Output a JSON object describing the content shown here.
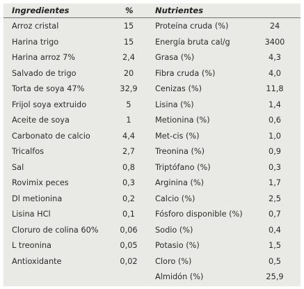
{
  "headers": {
    "ingredients": "Ingredientes",
    "percent": "%",
    "nutrients": "Nutrientes"
  },
  "ingredients": [
    {
      "name": "Arroz cristal",
      "pct": "15"
    },
    {
      "name": "Harina trigo",
      "pct": "15"
    },
    {
      "name": "Harina arroz 7%",
      "pct": "2,4"
    },
    {
      "name": "Salvado de trigo",
      "pct": "20"
    },
    {
      "name": "Torta de soya 47%",
      "pct": "32,9"
    },
    {
      "name": "Frijol soya extruido",
      "pct": "5"
    },
    {
      "name": "Aceite de soya",
      "pct": "1"
    },
    {
      "name": "Carbonato de calcio",
      "pct": "4,4"
    },
    {
      "name": "Tricalfos",
      "pct": "2,7"
    },
    {
      "name": "Sal",
      "pct": "0,8"
    },
    {
      "name": "Rovimix peces",
      "pct": "0,3"
    },
    {
      "name": "Dl metionina",
      "pct": "0,2"
    },
    {
      "name": "Lisina HCl",
      "pct": "0,1"
    },
    {
      "name": "Cloruro de colina 60%",
      "pct": "0,06"
    },
    {
      "name": "L treonina",
      "pct": "0,05"
    },
    {
      "name": "Antioxidante",
      "pct": "0,02"
    }
  ],
  "nutrients": [
    {
      "name": "Proteína cruda (%)",
      "value": "24"
    },
    {
      "name": "Energía bruta cal/g",
      "value": "3400"
    },
    {
      "name": "Grasa (%)",
      "value": "4,3"
    },
    {
      "name": "Fibra cruda (%)",
      "value": "4,0"
    },
    {
      "name": "Cenizas (%)",
      "value": "11,8"
    },
    {
      "name": "Lisina (%)",
      "value": "1,4"
    },
    {
      "name": "Metionina (%)",
      "value": "0,6"
    },
    {
      "name": "Met-cis (%)",
      "value": "1,0"
    },
    {
      "name": "Treonina (%)",
      "value": "0,9"
    },
    {
      "name": "Triptófano (%)",
      "value": "0,3"
    },
    {
      "name": "Arginina (%)",
      "value": "1,7"
    },
    {
      "name": "Calcio (%)",
      "value": "2,5"
    },
    {
      "name": "Fósforo disponible (%)",
      "value": "0,7"
    },
    {
      "name": "Sodio (%)",
      "value": "0,4"
    },
    {
      "name": "Potasio (%)",
      "value": "1,5"
    },
    {
      "name": "Cloro (%)",
      "value": "0,5"
    },
    {
      "name": "Almidón (%)",
      "value": "25,9"
    }
  ]
}
